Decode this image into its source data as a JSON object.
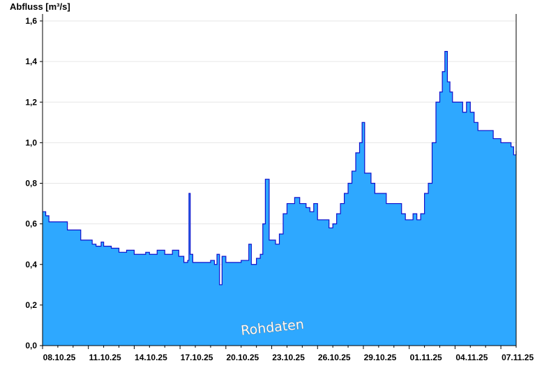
{
  "chart_data": {
    "type": "area",
    "title": "",
    "ylabel": "Abfluss [m³/s]",
    "xlabel": "",
    "watermark": "Rohdaten",
    "ylim": [
      0,
      1.6
    ],
    "xlim": [
      "2025-10-08",
      "2025-11-08"
    ],
    "grid": true,
    "fill_color": "#2ea8ff",
    "line_color": "#1010cc",
    "yticks": [
      "0,0",
      "0,2",
      "0,4",
      "0,6",
      "0,8",
      "1,0",
      "1,2",
      "1,4",
      "1,6"
    ],
    "xticks": [
      "08.10.25",
      "11.10.25",
      "14.10.25",
      "17.10.25",
      "20.10.25",
      "23.10.25",
      "26.10.25",
      "29.10.25",
      "01.11.25",
      "04.11.25",
      "07.11.25"
    ],
    "series": [
      {
        "x": [
          "2025-10-08 00:00",
          "2025-10-08 05:00",
          "2025-10-08 10:00",
          "2025-10-09 00:00",
          "2025-10-09 15:00",
          "2025-10-10 00:00",
          "2025-10-10 12:00",
          "2025-10-10 18:00",
          "2025-10-11 00:00",
          "2025-10-11 06:00",
          "2025-10-11 12:00",
          "2025-10-11 20:00",
          "2025-10-12 00:00",
          "2025-10-12 12:00",
          "2025-10-13 00:00",
          "2025-10-13 12:00",
          "2025-10-14 00:00",
          "2025-10-14 12:00",
          "2025-10-14 18:00",
          "2025-10-15 00:00",
          "2025-10-15 12:00",
          "2025-10-16 00:00",
          "2025-10-16 12:00",
          "2025-10-16 22:00",
          "2025-10-17 06:00",
          "2025-10-17 12:00",
          "2025-10-17 14:00",
          "2025-10-17 16:00",
          "2025-10-17 20:00",
          "2025-10-18 12:00",
          "2025-10-19 00:00",
          "2025-10-19 06:00",
          "2025-10-19 10:00",
          "2025-10-19 14:00",
          "2025-10-19 18:00",
          "2025-10-20 00:00",
          "2025-10-20 12:00",
          "2025-10-21 00:00",
          "2025-10-21 12:00",
          "2025-10-21 16:00",
          "2025-10-22 00:00",
          "2025-10-22 06:00",
          "2025-10-22 10:00",
          "2025-10-22 14:00",
          "2025-10-22 20:00",
          "2025-10-23 00:00",
          "2025-10-23 06:00",
          "2025-10-23 12:00",
          "2025-10-23 18:00",
          "2025-10-24 00:00",
          "2025-10-24 06:00",
          "2025-10-24 12:00",
          "2025-10-24 20:00",
          "2025-10-25 06:00",
          "2025-10-25 12:00",
          "2025-10-25 18:00",
          "2025-10-26 00:00",
          "2025-10-26 06:00",
          "2025-10-26 12:00",
          "2025-10-26 18:00",
          "2025-10-27 00:00",
          "2025-10-27 06:00",
          "2025-10-27 12:00",
          "2025-10-27 18:00",
          "2025-10-28 00:00",
          "2025-10-28 06:00",
          "2025-10-28 12:00",
          "2025-10-28 18:00",
          "2025-10-28 22:00",
          "2025-10-29 02:00",
          "2025-10-29 06:00",
          "2025-10-29 12:00",
          "2025-10-29 18:00",
          "2025-10-30 00:00",
          "2025-10-30 06:00",
          "2025-10-30 12:00",
          "2025-10-30 18:00",
          "2025-10-31 00:00",
          "2025-10-31 12:00",
          "2025-10-31 18:00",
          "2025-11-01 00:00",
          "2025-11-01 06:00",
          "2025-11-01 12:00",
          "2025-11-01 18:00",
          "2025-11-02 00:00",
          "2025-11-02 06:00",
          "2025-11-02 12:00",
          "2025-11-02 18:00",
          "2025-11-03 00:00",
          "2025-11-03 04:00",
          "2025-11-03 08:00",
          "2025-11-03 12:00",
          "2025-11-03 16:00",
          "2025-11-03 20:00",
          "2025-11-04 00:00",
          "2025-11-04 12:00",
          "2025-11-04 18:00",
          "2025-11-05 00:00",
          "2025-11-05 06:00",
          "2025-11-05 12:00",
          "2025-11-06 00:00",
          "2025-11-06 06:00",
          "2025-11-06 12:00",
          "2025-11-07 00:00",
          "2025-11-07 12:00",
          "2025-11-07 16:00",
          "2025-11-07 20:00",
          "2025-11-08 00:00"
        ],
        "y": [
          0.66,
          0.64,
          0.61,
          0.61,
          0.57,
          0.57,
          0.52,
          0.52,
          0.52,
          0.5,
          0.49,
          0.51,
          0.49,
          0.48,
          0.46,
          0.47,
          0.45,
          0.45,
          0.46,
          0.45,
          0.47,
          0.45,
          0.47,
          0.44,
          0.41,
          0.42,
          0.75,
          0.45,
          0.41,
          0.41,
          0.42,
          0.4,
          0.45,
          0.3,
          0.44,
          0.41,
          0.41,
          0.42,
          0.5,
          0.4,
          0.43,
          0.45,
          0.6,
          0.82,
          0.52,
          0.52,
          0.5,
          0.55,
          0.65,
          0.7,
          0.7,
          0.73,
          0.7,
          0.68,
          0.66,
          0.7,
          0.62,
          0.62,
          0.62,
          0.58,
          0.6,
          0.65,
          0.7,
          0.75,
          0.8,
          0.86,
          0.95,
          1.0,
          1.1,
          0.85,
          0.85,
          0.8,
          0.75,
          0.75,
          0.75,
          0.7,
          0.7,
          0.7,
          0.65,
          0.62,
          0.62,
          0.65,
          0.62,
          0.65,
          0.75,
          0.8,
          1.0,
          1.2,
          1.25,
          1.35,
          1.45,
          1.3,
          1.25,
          1.2,
          1.2,
          1.15,
          1.2,
          1.15,
          1.1,
          1.06,
          1.06,
          1.06,
          1.02,
          1.0,
          1.0,
          0.98,
          0.94,
          0.96
        ]
      }
    ]
  }
}
